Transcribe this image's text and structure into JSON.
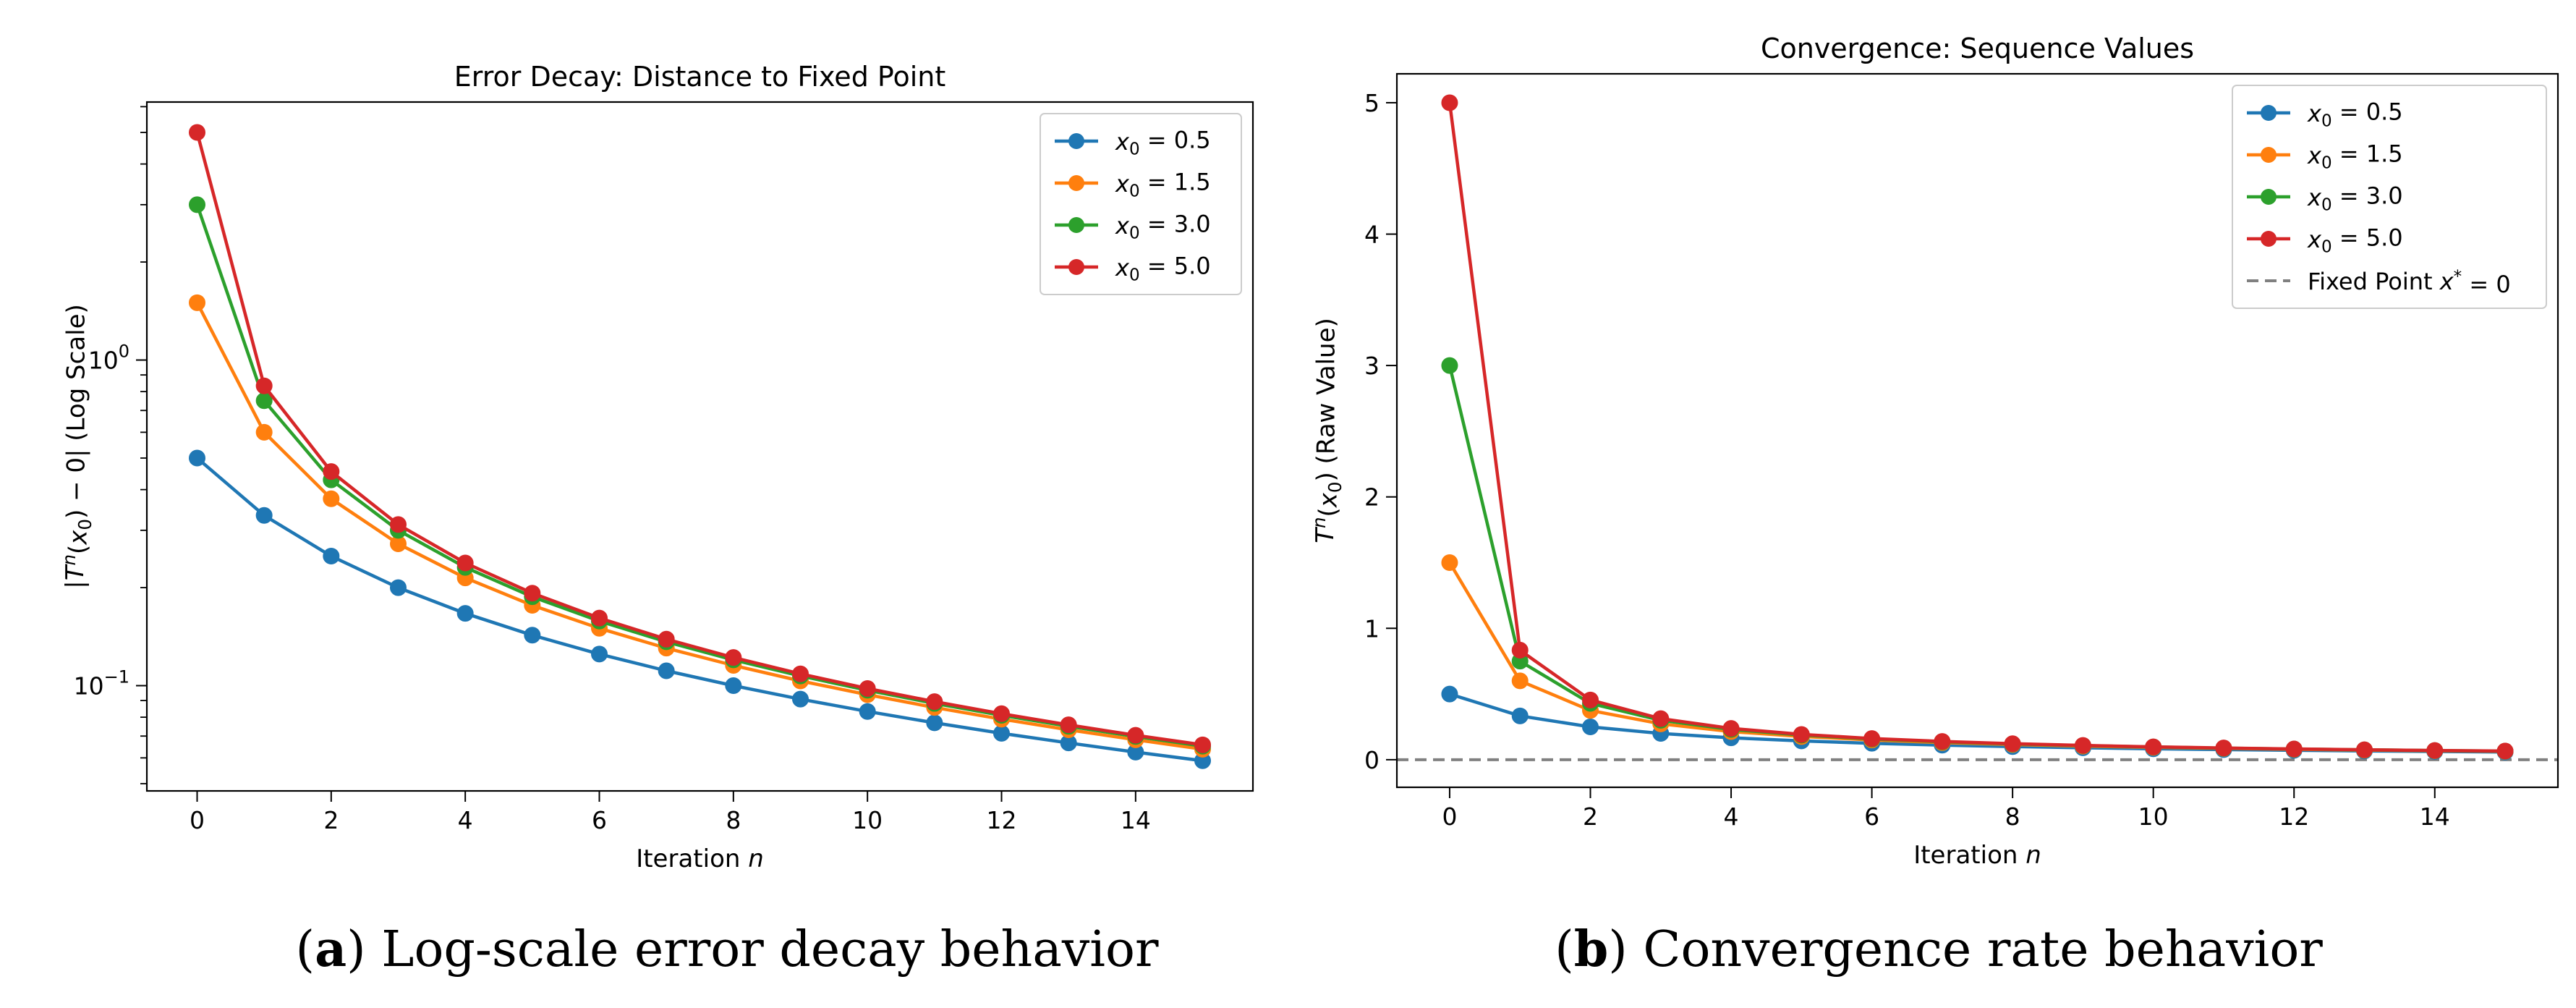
{
  "figure": {
    "captions": [
      {
        "letter": "a",
        "text": "Log-scale error decay behavior"
      },
      {
        "letter": "b",
        "text": "Convergence rate behavior"
      }
    ]
  },
  "colors": {
    "series": [
      "#1f77b4",
      "#ff7f0e",
      "#2ca02c",
      "#d62728"
    ],
    "reference": "#808080"
  },
  "chart_data": [
    {
      "type": "line",
      "title": "Error Decay: Distance to Fixed Point",
      "xlabel": "Iteration n",
      "ylabel": "|Tⁿ(x₀) − 0| (Log Scale)",
      "yscale": "log",
      "xlim": [
        -0.75,
        15.75
      ],
      "ylim": [
        0.0475,
        6.2
      ],
      "xticks": [
        0,
        2,
        4,
        6,
        8,
        10,
        12,
        14
      ],
      "yticks": [
        {
          "value": 0.1,
          "label": "10⁻¹"
        },
        {
          "value": 1,
          "label": "10⁰"
        }
      ],
      "grid": false,
      "legend_position": "top-right",
      "x": [
        0,
        1,
        2,
        3,
        4,
        5,
        6,
        7,
        8,
        9,
        10,
        11,
        12,
        13,
        14,
        15
      ],
      "series": [
        {
          "name": "x₀ = 0.5",
          "values": [
            0.5,
            0.3333,
            0.25,
            0.2,
            0.1667,
            0.1429,
            0.125,
            0.1111,
            0.1,
            0.0909,
            0.0833,
            0.0769,
            0.0714,
            0.0667,
            0.0625,
            0.0588
          ]
        },
        {
          "name": "x₀ = 1.5",
          "values": [
            1.5,
            0.6,
            0.375,
            0.2727,
            0.2143,
            0.1765,
            0.15,
            0.1304,
            0.1154,
            0.1034,
            0.0938,
            0.0857,
            0.0789,
            0.0732,
            0.0682,
            0.0638
          ]
        },
        {
          "name": "x₀ = 3.0",
          "values": [
            3.0,
            0.75,
            0.4286,
            0.3,
            0.2308,
            0.1875,
            0.1579,
            0.1364,
            0.12,
            0.1071,
            0.0968,
            0.0882,
            0.0811,
            0.075,
            0.0698,
            0.0652
          ]
        },
        {
          "name": "x₀ = 5.0",
          "values": [
            5.0,
            0.8333,
            0.4545,
            0.3125,
            0.2381,
            0.1923,
            0.1613,
            0.1389,
            0.122,
            0.1087,
            0.098,
            0.0893,
            0.082,
            0.0758,
            0.0704,
            0.0658
          ]
        }
      ]
    },
    {
      "type": "line",
      "title": "Convergence: Sequence Values",
      "xlabel": "Iteration n",
      "ylabel": "Tⁿ(x₀) (Raw Value)",
      "yscale": "linear",
      "xlim": [
        -0.75,
        15.75
      ],
      "ylim": [
        -0.21,
        5.22
      ],
      "xticks": [
        0,
        2,
        4,
        6,
        8,
        10,
        12,
        14
      ],
      "yticks": [
        {
          "value": 0,
          "label": "0"
        },
        {
          "value": 1,
          "label": "1"
        },
        {
          "value": 2,
          "label": "2"
        },
        {
          "value": 3,
          "label": "3"
        },
        {
          "value": 4,
          "label": "4"
        },
        {
          "value": 5,
          "label": "5"
        }
      ],
      "grid": false,
      "legend_position": "top-right",
      "reference_line": {
        "y": 0,
        "name": "Fixed Point x* = 0",
        "style": "dashed"
      },
      "x": [
        0,
        1,
        2,
        3,
        4,
        5,
        6,
        7,
        8,
        9,
        10,
        11,
        12,
        13,
        14,
        15
      ],
      "series": [
        {
          "name": "x₀ = 0.5",
          "values": [
            0.5,
            0.3333,
            0.25,
            0.2,
            0.1667,
            0.1429,
            0.125,
            0.1111,
            0.1,
            0.0909,
            0.0833,
            0.0769,
            0.0714,
            0.0667,
            0.0625,
            0.0588
          ]
        },
        {
          "name": "x₀ = 1.5",
          "values": [
            1.5,
            0.6,
            0.375,
            0.2727,
            0.2143,
            0.1765,
            0.15,
            0.1304,
            0.1154,
            0.1034,
            0.0938,
            0.0857,
            0.0789,
            0.0732,
            0.0682,
            0.0638
          ]
        },
        {
          "name": "x₀ = 3.0",
          "values": [
            3.0,
            0.75,
            0.4286,
            0.3,
            0.2308,
            0.1875,
            0.1579,
            0.1364,
            0.12,
            0.1071,
            0.0968,
            0.0882,
            0.0811,
            0.075,
            0.0698,
            0.0652
          ]
        },
        {
          "name": "x₀ = 5.0",
          "values": [
            5.0,
            0.8333,
            0.4545,
            0.3125,
            0.2381,
            0.1923,
            0.1613,
            0.1389,
            0.122,
            0.1087,
            0.098,
            0.0893,
            0.082,
            0.0758,
            0.0704,
            0.0658
          ]
        }
      ]
    }
  ]
}
